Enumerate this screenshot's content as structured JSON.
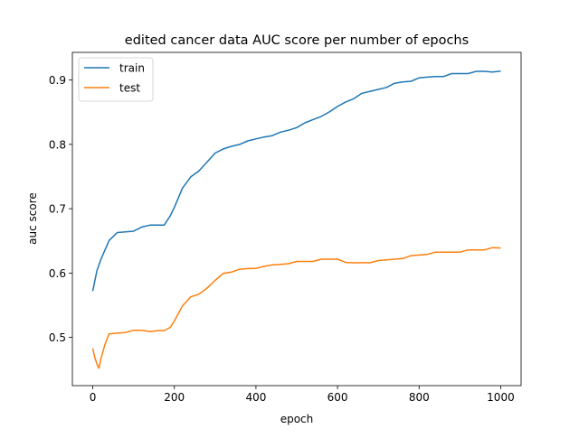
{
  "chart_data": {
    "type": "line",
    "title": "edited cancer data AUC score per number of epochs",
    "xlabel": "epoch",
    "ylabel": "auc score",
    "xlim": [
      -50,
      1050
    ],
    "ylim": [
      0.425,
      0.943
    ],
    "xticks": [
      0,
      200,
      400,
      600,
      800,
      1000
    ],
    "xtick_labels": [
      "0",
      "200",
      "400",
      "600",
      "800",
      "1000"
    ],
    "yticks": [
      0.5,
      0.6,
      0.7,
      0.8,
      0.9
    ],
    "ytick_labels": [
      "0.5",
      "0.6",
      "0.7",
      "0.8",
      "0.9"
    ],
    "grid": false,
    "legend_position": "upper-left",
    "series": [
      {
        "name": "train",
        "color": "#1f77b4",
        "x": [
          0,
          10,
          20,
          40,
          60,
          80,
          100,
          120,
          140,
          160,
          175,
          190,
          200,
          220,
          240,
          260,
          280,
          300,
          320,
          340,
          360,
          380,
          400,
          420,
          440,
          460,
          480,
          500,
          520,
          540,
          560,
          580,
          600,
          620,
          640,
          660,
          680,
          700,
          720,
          740,
          760,
          780,
          800,
          820,
          840,
          860,
          880,
          900,
          920,
          940,
          960,
          980,
          1000
        ],
        "y": [
          0.572,
          0.603,
          0.622,
          0.652,
          0.662,
          0.664,
          0.666,
          0.67,
          0.674,
          0.675,
          0.676,
          0.688,
          0.702,
          0.733,
          0.748,
          0.758,
          0.773,
          0.788,
          0.792,
          0.797,
          0.801,
          0.804,
          0.808,
          0.812,
          0.815,
          0.818,
          0.822,
          0.827,
          0.832,
          0.838,
          0.844,
          0.852,
          0.858,
          0.866,
          0.872,
          0.878,
          0.882,
          0.886,
          0.89,
          0.894,
          0.897,
          0.899,
          0.902,
          0.904,
          0.906,
          0.907,
          0.909,
          0.91,
          0.911,
          0.912,
          0.913,
          0.913,
          0.914
        ]
      },
      {
        "name": "test",
        "color": "#ff7f0e",
        "x": [
          0,
          5,
          10,
          15,
          20,
          30,
          40,
          60,
          80,
          100,
          120,
          140,
          160,
          175,
          190,
          200,
          220,
          240,
          260,
          280,
          300,
          320,
          340,
          360,
          380,
          400,
          420,
          440,
          460,
          480,
          500,
          520,
          540,
          560,
          580,
          600,
          620,
          640,
          660,
          680,
          700,
          720,
          740,
          760,
          780,
          800,
          820,
          840,
          860,
          880,
          900,
          920,
          940,
          960,
          980,
          1000
        ],
        "y": [
          0.483,
          0.47,
          0.458,
          0.452,
          0.468,
          0.488,
          0.505,
          0.507,
          0.509,
          0.51,
          0.511,
          0.51,
          0.509,
          0.51,
          0.516,
          0.527,
          0.548,
          0.563,
          0.568,
          0.575,
          0.588,
          0.6,
          0.603,
          0.605,
          0.607,
          0.608,
          0.609,
          0.612,
          0.614,
          0.616,
          0.617,
          0.618,
          0.619,
          0.62,
          0.621,
          0.622,
          0.618,
          0.615,
          0.616,
          0.617,
          0.618,
          0.62,
          0.622,
          0.624,
          0.626,
          0.628,
          0.63,
          0.631,
          0.632,
          0.633,
          0.634,
          0.635,
          0.636,
          0.637,
          0.638,
          0.639
        ]
      }
    ]
  }
}
